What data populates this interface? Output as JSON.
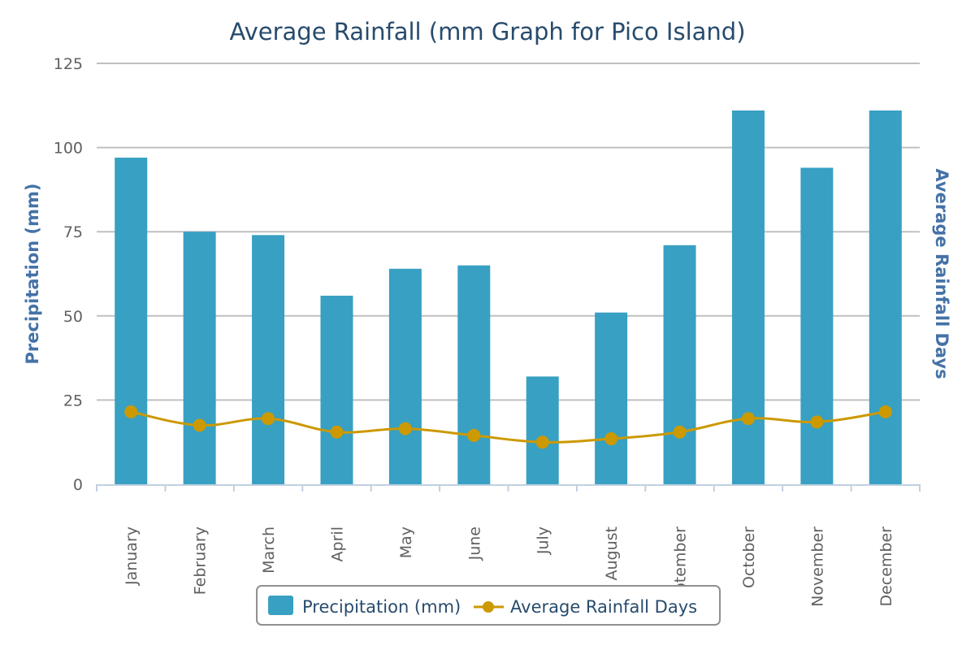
{
  "chart_data": {
    "type": "bar",
    "title": "Average Rainfall (mm Graph for Pico Island)",
    "xlabel": "",
    "ylabel": "Precipitation (mm)",
    "y2label": "Average Rainfall Days",
    "ylim": [
      0,
      125
    ],
    "yticks": [
      "0",
      "25",
      "50",
      "75",
      "100",
      "125"
    ],
    "grid": true,
    "legend_position": "bottom-center",
    "categories": [
      "January",
      "February",
      "March",
      "April",
      "May",
      "June",
      "July",
      "August",
      "September",
      "October",
      "November",
      "December"
    ],
    "series": [
      {
        "name": "Precipitation (mm)",
        "type": "bar",
        "color": "#38a0c2",
        "values": [
          97,
          75,
          74,
          56,
          64,
          65,
          32,
          51,
          71,
          111,
          94,
          111
        ]
      },
      {
        "name": "Average Rainfall Days",
        "type": "line",
        "color": "#cc9900",
        "values": [
          21.5,
          17.5,
          19.5,
          15.5,
          16.5,
          14.5,
          12.5,
          13.5,
          15.5,
          19.5,
          18.5,
          21.5
        ]
      }
    ]
  }
}
